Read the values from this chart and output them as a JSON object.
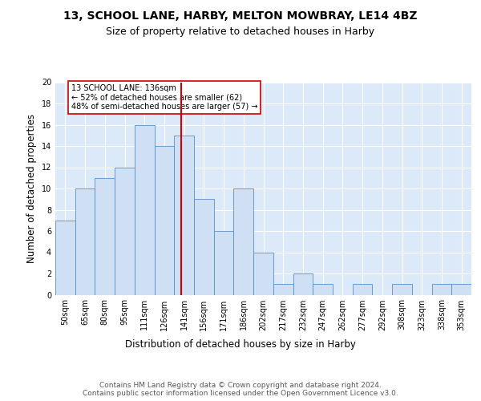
{
  "title1": "13, SCHOOL LANE, HARBY, MELTON MOWBRAY, LE14 4BZ",
  "title2": "Size of property relative to detached houses in Harby",
  "xlabel": "Distribution of detached houses by size in Harby",
  "ylabel": "Number of detached properties",
  "bar_labels": [
    "50sqm",
    "65sqm",
    "80sqm",
    "95sqm",
    "111sqm",
    "126sqm",
    "141sqm",
    "156sqm",
    "171sqm",
    "186sqm",
    "202sqm",
    "217sqm",
    "232sqm",
    "247sqm",
    "262sqm",
    "277sqm",
    "292sqm",
    "308sqm",
    "323sqm",
    "338sqm",
    "353sqm"
  ],
  "bar_values": [
    7,
    10,
    11,
    12,
    16,
    14,
    15,
    9,
    6,
    10,
    4,
    1,
    2,
    1,
    0,
    1,
    0,
    1,
    0,
    1,
    1
  ],
  "bar_color": "#cfe0f5",
  "bar_edgecolor": "#5a8fc5",
  "vline_x": 5.85,
  "vline_color": "#cc0000",
  "annotation_text": "13 SCHOOL LANE: 136sqm\n← 52% of detached houses are smaller (62)\n48% of semi-detached houses are larger (57) →",
  "annotation_box_color": "#ffffff",
  "annotation_box_edgecolor": "#cc0000",
  "ylim": [
    0,
    20
  ],
  "yticks": [
    0,
    2,
    4,
    6,
    8,
    10,
    12,
    14,
    16,
    18,
    20
  ],
  "footnote": "Contains HM Land Registry data © Crown copyright and database right 2024.\nContains public sector information licensed under the Open Government Licence v3.0.",
  "background_color": "#dce9f8",
  "grid_color": "#ffffff",
  "title1_fontsize": 10,
  "title2_fontsize": 9,
  "xlabel_fontsize": 8.5,
  "ylabel_fontsize": 8.5,
  "footnote_fontsize": 6.5,
  "tick_fontsize": 7
}
